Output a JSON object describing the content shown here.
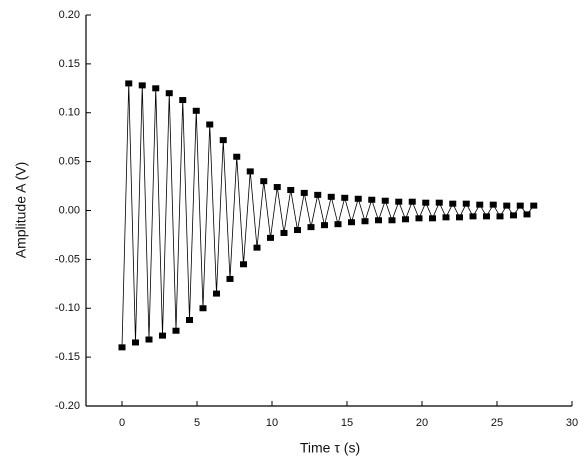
{
  "chart_data": {
    "type": "line",
    "xlabel": "Time τ (s)",
    "ylabel": "Amplitude A (V)",
    "x": [
      0.0,
      0.45,
      0.9,
      1.35,
      1.8,
      2.25,
      2.7,
      3.15,
      3.6,
      4.05,
      4.5,
      4.95,
      5.4,
      5.85,
      6.3,
      6.75,
      7.2,
      7.65,
      8.1,
      8.55,
      9.0,
      9.45,
      9.9,
      10.35,
      10.8,
      11.25,
      11.7,
      12.15,
      12.6,
      13.05,
      13.5,
      13.95,
      14.4,
      14.85,
      15.3,
      15.75,
      16.2,
      16.65,
      17.1,
      17.55,
      18.0,
      18.45,
      18.9,
      19.35,
      19.8,
      20.25,
      20.7,
      21.15,
      21.6,
      22.05,
      22.5,
      22.95,
      23.4,
      23.85,
      24.3,
      24.75,
      25.2,
      25.65,
      26.1,
      26.55,
      27.0,
      27.45
    ],
    "series": [
      {
        "color": "#000000",
        "values": [
          -0.14,
          0.13,
          -0.135,
          0.128,
          -0.132,
          0.125,
          -0.128,
          0.12,
          -0.123,
          0.113,
          -0.112,
          0.102,
          -0.1,
          0.088,
          -0.085,
          0.072,
          -0.07,
          0.055,
          -0.055,
          0.04,
          -0.038,
          0.03,
          -0.028,
          0.024,
          -0.023,
          0.021,
          -0.02,
          0.018,
          -0.017,
          0.016,
          -0.015,
          0.014,
          -0.014,
          0.013,
          -0.012,
          0.012,
          -0.011,
          0.011,
          -0.01,
          0.01,
          -0.01,
          0.009,
          -0.009,
          0.009,
          -0.008,
          0.008,
          -0.008,
          0.008,
          -0.007,
          0.007,
          -0.007,
          0.007,
          -0.006,
          0.006,
          -0.006,
          0.006,
          -0.006,
          0.005,
          -0.005,
          0.005,
          -0.004,
          0.005
        ]
      }
    ],
    "xlim": [
      -2.4,
      30
    ],
    "xticks": [
      0,
      5,
      10,
      15,
      20,
      25,
      30
    ],
    "ylim": [
      -0.2,
      0.2
    ],
    "yticks": [
      {
        "value": -0.2,
        "label": "-0.20"
      },
      {
        "value": -0.15,
        "label": "-0.15"
      },
      {
        "value": -0.1,
        "label": "-0.10"
      },
      {
        "value": -0.05,
        "label": "-0.05"
      },
      {
        "value": 0,
        "label": "0.00"
      },
      {
        "value": 0.05,
        "label": "0.05"
      },
      {
        "value": 0.1,
        "label": "0.10"
      },
      {
        "value": 0.15,
        "label": "0.15"
      },
      {
        "value": 0.2,
        "label": "0.20"
      }
    ],
    "grid": false
  }
}
